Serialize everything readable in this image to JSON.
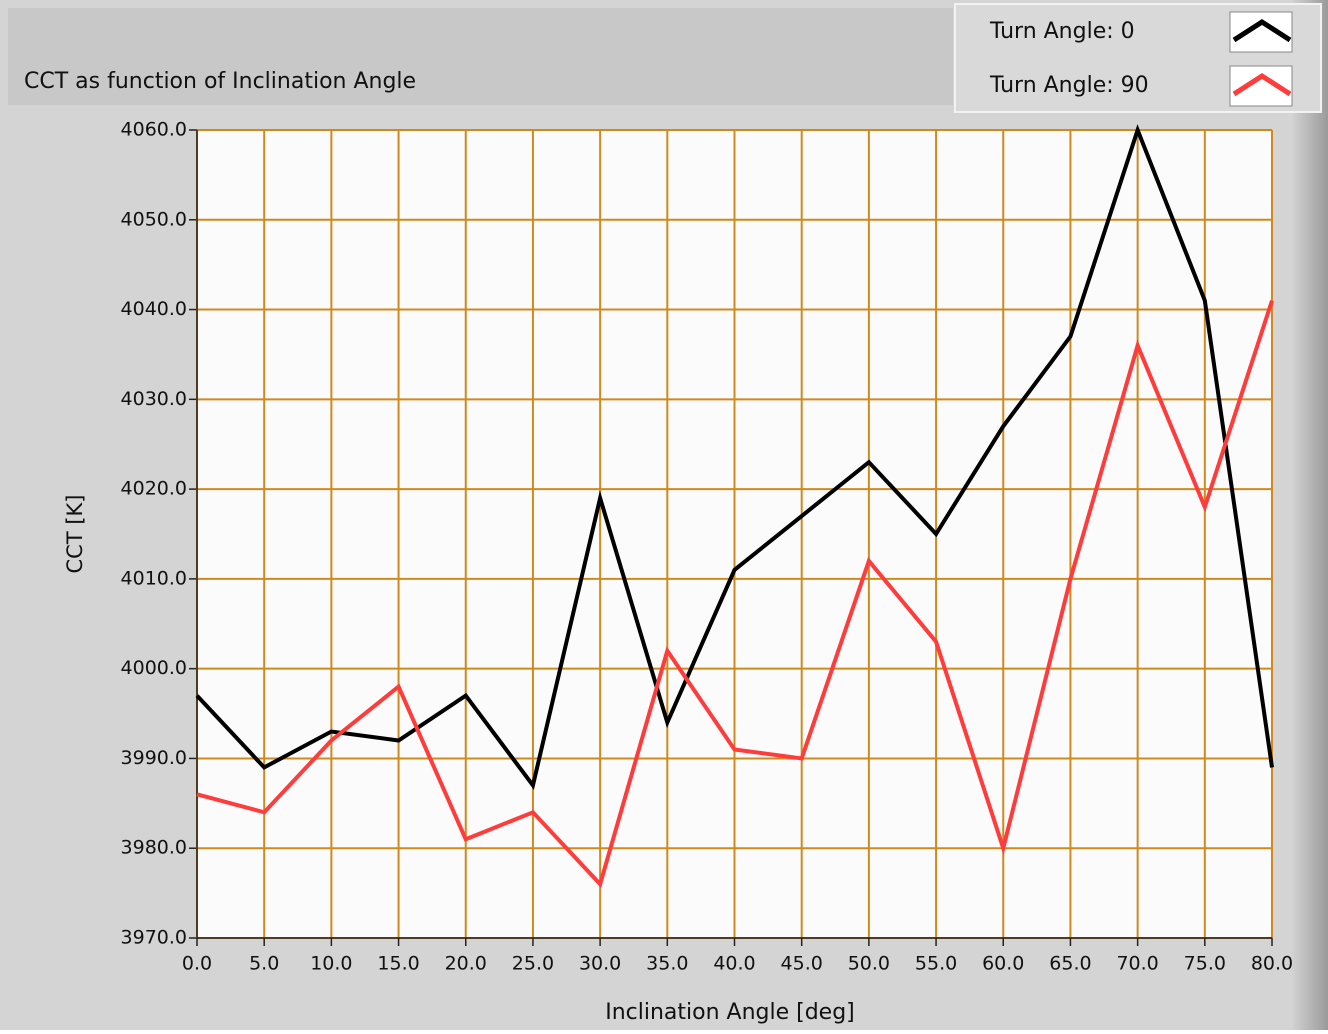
{
  "chart_data": {
    "type": "line",
    "title": "CCT as function of Inclination Angle",
    "x_label": "Inclination Angle [deg]",
    "y_label": "CCT [K]",
    "x": [
      0,
      5,
      10,
      15,
      20,
      25,
      30,
      35,
      40,
      45,
      50,
      55,
      60,
      65,
      70,
      75,
      80
    ],
    "series": [
      {
        "name": "Turn Angle: 0",
        "color": "#000000",
        "values": [
          3997,
          3989,
          3993,
          3992,
          3997,
          3987,
          4019,
          3994,
          4011,
          4017,
          4023,
          4015,
          4027,
          4037,
          4060,
          4041,
          3989
        ]
      },
      {
        "name": "Turn Angle: 90",
        "color": "#ff3c3c",
        "values": [
          3986,
          3984,
          3992,
          3998,
          3981,
          3984,
          3976,
          4002,
          3991,
          3990,
          4012,
          4003,
          3980,
          4010,
          4036,
          4018,
          4041
        ]
      }
    ],
    "xlim": [
      0,
      80
    ],
    "ylim": [
      3970,
      4060
    ],
    "xticks": [
      {
        "value": 0,
        "label": "0.0"
      },
      {
        "value": 5,
        "label": "5.0"
      },
      {
        "value": 10,
        "label": "10.0"
      },
      {
        "value": 15,
        "label": "15.0"
      },
      {
        "value": 20,
        "label": "20.0"
      },
      {
        "value": 25,
        "label": "25.0"
      },
      {
        "value": 30,
        "label": "30.0"
      },
      {
        "value": 35,
        "label": "35.0"
      },
      {
        "value": 40,
        "label": "40.0"
      },
      {
        "value": 45,
        "label": "45.0"
      },
      {
        "value": 50,
        "label": "50.0"
      },
      {
        "value": 55,
        "label": "55.0"
      },
      {
        "value": 60,
        "label": "60.0"
      },
      {
        "value": 65,
        "label": "65.0"
      },
      {
        "value": 70,
        "label": "70.0"
      },
      {
        "value": 75,
        "label": "75.0"
      },
      {
        "value": 80,
        "label": "80.0"
      }
    ],
    "yticks": [
      {
        "value": 3970,
        "label": "3970.0"
      },
      {
        "value": 3980,
        "label": "3980.0"
      },
      {
        "value": 3990,
        "label": "3990.0"
      },
      {
        "value": 4000,
        "label": "4000.0"
      },
      {
        "value": 4010,
        "label": "4010.0"
      },
      {
        "value": 4020,
        "label": "4020.0"
      },
      {
        "value": 4030,
        "label": "4030.0"
      },
      {
        "value": 4040,
        "label": "4040.0"
      },
      {
        "value": 4050,
        "label": "4050.0"
      },
      {
        "value": 4060,
        "label": "4060.0"
      }
    ],
    "grid": true,
    "grid_color": "#d08a1c",
    "legend": "top-right"
  }
}
